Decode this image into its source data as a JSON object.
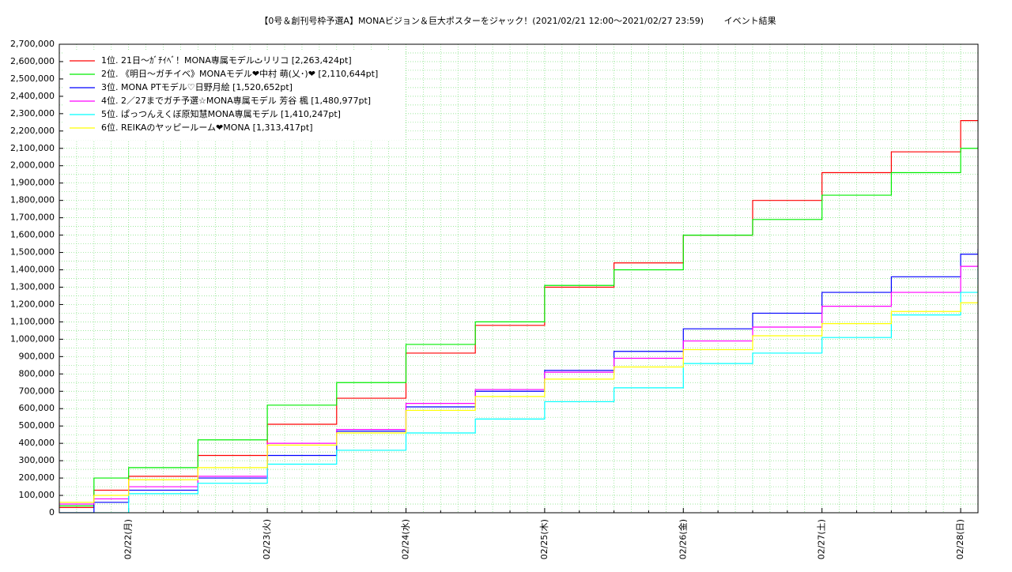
{
  "chart_data": {
    "type": "line",
    "step": true,
    "title": "【0号＆創刊号枠予選A】MONAビジョン＆巨大ポスターをジャック！(2021/02/21 12:00～2021/02/27 23:59)　　 イベント結果",
    "x": [
      -0.5,
      -0.25,
      0,
      0.5,
      1,
      1.5,
      2,
      2.5,
      3,
      3.5,
      4,
      4.5,
      5,
      5.5,
      6,
      6.125
    ],
    "xlim": [
      -0.5,
      6.125
    ],
    "xticks": [
      {
        "value": 0,
        "label": "02/22(月)"
      },
      {
        "value": 1,
        "label": "02/23(火)"
      },
      {
        "value": 2,
        "label": "02/24(水)"
      },
      {
        "value": 3,
        "label": "02/25(木)"
      },
      {
        "value": 4,
        "label": "02/26(金)"
      },
      {
        "value": 5,
        "label": "02/27(土)"
      },
      {
        "value": 6,
        "label": "02/28(日)"
      }
    ],
    "ylim": [
      0,
      2700000
    ],
    "yticks": [
      0,
      {
        "value": 100000,
        "label": "100,000"
      },
      {
        "value": 200000,
        "label": "200,000"
      },
      {
        "value": 300000,
        "label": "300,000"
      },
      {
        "value": 400000,
        "label": "400,000"
      },
      {
        "value": 500000,
        "label": "500,000"
      },
      {
        "value": 600000,
        "label": "600,000"
      },
      {
        "value": 700000,
        "label": "700,000"
      },
      {
        "value": 800000,
        "label": "800,000"
      },
      {
        "value": 900000,
        "label": "900,000"
      },
      {
        "value": 1000000,
        "label": "1,000,000"
      },
      {
        "value": 1100000,
        "label": "1,100,000"
      },
      {
        "value": 1200000,
        "label": "1,200,000"
      },
      {
        "value": 1300000,
        "label": "1,300,000"
      },
      {
        "value": 1400000,
        "label": "1,400,000"
      },
      {
        "value": 1500000,
        "label": "1,500,000"
      },
      {
        "value": 1600000,
        "label": "1,600,000"
      },
      {
        "value": 1700000,
        "label": "1,700,000"
      },
      {
        "value": 1800000,
        "label": "1,800,000"
      },
      {
        "value": 1900000,
        "label": "1,900,000"
      },
      {
        "value": 2000000,
        "label": "2,000,000"
      },
      {
        "value": 2100000,
        "label": "2,100,000"
      },
      {
        "value": 2200000,
        "label": "2,200,000"
      },
      {
        "value": 2300000,
        "label": "2,300,000"
      },
      {
        "value": 2400000,
        "label": "2,400,000"
      },
      {
        "value": 2500000,
        "label": "2,500,000"
      },
      {
        "value": 2600000,
        "label": "2,600,000"
      },
      {
        "value": 2700000,
        "label": "2,700,000"
      }
    ],
    "grid": true,
    "legend": "upper left",
    "series": [
      {
        "name": "1位. 21日～ｶﾞﾁｲﾍﾞ！MONA専属モデルٹリリコ [2,263,424pt]",
        "color": "#ff0000",
        "values": [
          30000,
          130000,
          210000,
          330000,
          510000,
          660000,
          920000,
          1080000,
          1300000,
          1440000,
          1600000,
          1800000,
          1960000,
          2080000,
          2260000,
          2263424
        ]
      },
      {
        "name": "2位. 《明日～ガチイベ》MONAモデル❤中村 萌(乂･)❤ [2,110,644pt]",
        "color": "#00ee00",
        "values": [
          40000,
          200000,
          260000,
          420000,
          620000,
          750000,
          970000,
          1100000,
          1310000,
          1400000,
          1600000,
          1690000,
          1830000,
          1960000,
          2100000,
          2110644
        ]
      },
      {
        "name": "3位. MONA PTモデル♡日野月絵 [1,520,652pt]",
        "color": "#0000ff",
        "values": [
          0,
          60000,
          130000,
          200000,
          330000,
          470000,
          610000,
          700000,
          820000,
          930000,
          1060000,
          1150000,
          1270000,
          1360000,
          1490000,
          1520652
        ]
      },
      {
        "name": "4位. 2／27までガチ予選☆MONA専属モデル 芳谷 楓 [1,480,977pt]",
        "color": "#ff00ff",
        "values": [
          50000,
          80000,
          150000,
          210000,
          400000,
          480000,
          630000,
          710000,
          810000,
          890000,
          990000,
          1070000,
          1190000,
          1270000,
          1420000,
          1480977
        ]
      },
      {
        "name": "5位. ぱっつんえくぼ原知慧MONA専属モデル [1,410,247pt]",
        "color": "#00ffff",
        "values": [
          0,
          0,
          110000,
          170000,
          280000,
          360000,
          460000,
          540000,
          640000,
          720000,
          860000,
          920000,
          1010000,
          1140000,
          1270000,
          1410247
        ]
      },
      {
        "name": "6位. REIKAのヤッピールーム❤MONA [1,313,417pt]",
        "color": "#ffff00",
        "values": [
          60000,
          100000,
          190000,
          260000,
          390000,
          460000,
          590000,
          670000,
          770000,
          840000,
          940000,
          1020000,
          1090000,
          1160000,
          1210000,
          1313417
        ]
      }
    ]
  }
}
